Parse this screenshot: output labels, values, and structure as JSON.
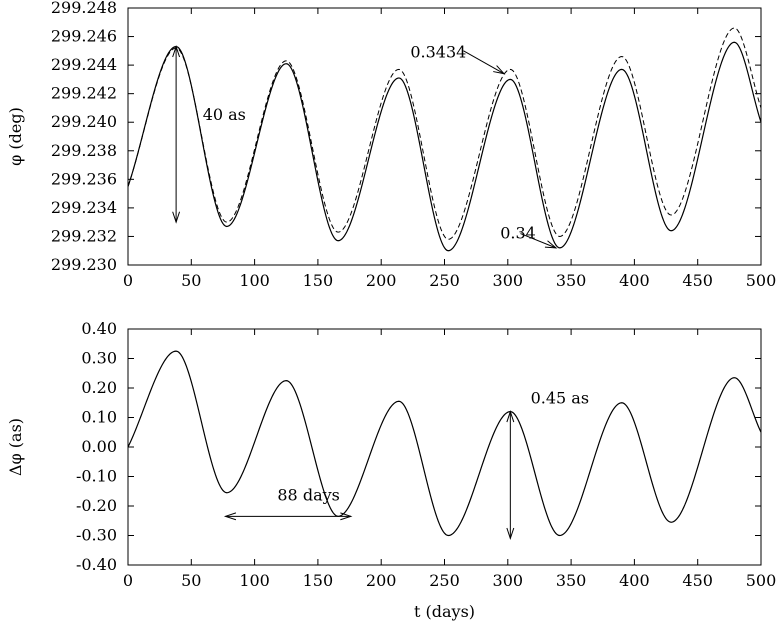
{
  "chart_data": [
    {
      "type": "line",
      "xlabel": "",
      "ylabel": "φ (deg)",
      "xlim": [
        0,
        500
      ],
      "ylim": [
        299.23,
        299.248
      ],
      "xticks": [
        "0",
        "50",
        "100",
        "150",
        "200",
        "250",
        "300",
        "350",
        "400",
        "450",
        "500"
      ],
      "yticks": [
        "299.230",
        "299.232",
        "299.234",
        "299.236",
        "299.238",
        "299.240",
        "299.242",
        "299.244",
        "299.246",
        "299.248"
      ],
      "grid": false,
      "series": [
        {
          "style": "solid",
          "x": [
            0,
            38,
            78,
            125,
            166,
            214,
            253,
            302,
            341,
            390,
            429,
            479,
            500
          ],
          "y": [
            299.2355,
            299.2453,
            299.2327,
            299.2441,
            299.2317,
            299.2431,
            299.231,
            299.243,
            299.2312,
            299.2437,
            299.2324,
            299.2456,
            299.24
          ]
        },
        {
          "style": "dashed",
          "x": [
            0,
            38,
            78,
            125,
            166,
            214,
            253,
            302,
            341,
            390,
            429,
            479,
            500
          ],
          "y": [
            299.2355,
            299.2452,
            299.233,
            299.2443,
            299.2323,
            299.2437,
            299.2318,
            299.2437,
            299.232,
            299.2446,
            299.2335,
            299.2466,
            299.241
          ]
        }
      ],
      "annotations": [
        {
          "text": "40 as",
          "arrow": {
            "type": "double",
            "from": [
              38,
              299.2453
            ],
            "to": [
              38,
              299.233
            ]
          },
          "text_at": [
            59,
            299.2405
          ]
        },
        {
          "text": "0.3434",
          "arrow": {
            "type": "single",
            "from": [
              265,
              299.245
            ],
            "to": [
              297,
              299.2434
            ]
          },
          "text_at": [
            223,
            299.2449
          ]
        },
        {
          "text": "0.34",
          "arrow": {
            "type": "single",
            "from": [
              310,
              299.2322
            ],
            "to": [
              338,
              299.2312
            ]
          },
          "text_at": [
            294,
            299.2322
          ]
        }
      ]
    },
    {
      "type": "line",
      "xlabel": "t (days)",
      "ylabel": "Δφ (as)",
      "xlim": [
        0,
        500
      ],
      "ylim": [
        -0.4,
        0.4
      ],
      "xticks": [
        "0",
        "50",
        "100",
        "150",
        "200",
        "250",
        "300",
        "350",
        "400",
        "450",
        "500"
      ],
      "yticks": [
        "-0.40",
        "-0.30",
        "-0.20",
        "-0.10",
        "0.00",
        "0.10",
        "0.20",
        "0.30",
        "0.40"
      ],
      "grid": false,
      "series": [
        {
          "style": "solid",
          "x": [
            0,
            38,
            78,
            125,
            166,
            214,
            253,
            302,
            341,
            390,
            429,
            479,
            500
          ],
          "y": [
            0.0,
            0.325,
            -0.155,
            0.225,
            -0.235,
            0.155,
            -0.3,
            0.12,
            -0.3,
            0.15,
            -0.255,
            0.235,
            0.05
          ]
        }
      ],
      "annotations": [
        {
          "text": "88 days",
          "arrow": {
            "type": "double",
            "from": [
              77,
              -0.235
            ],
            "to": [
              176,
              -0.235
            ]
          },
          "text_at": [
            118,
            -0.165
          ]
        },
        {
          "text": "0.45 as",
          "arrow": {
            "type": "double",
            "from": [
              302,
              0.12
            ],
            "to": [
              302,
              -0.31
            ]
          },
          "text_at": [
            318,
            0.165
          ]
        }
      ]
    }
  ]
}
